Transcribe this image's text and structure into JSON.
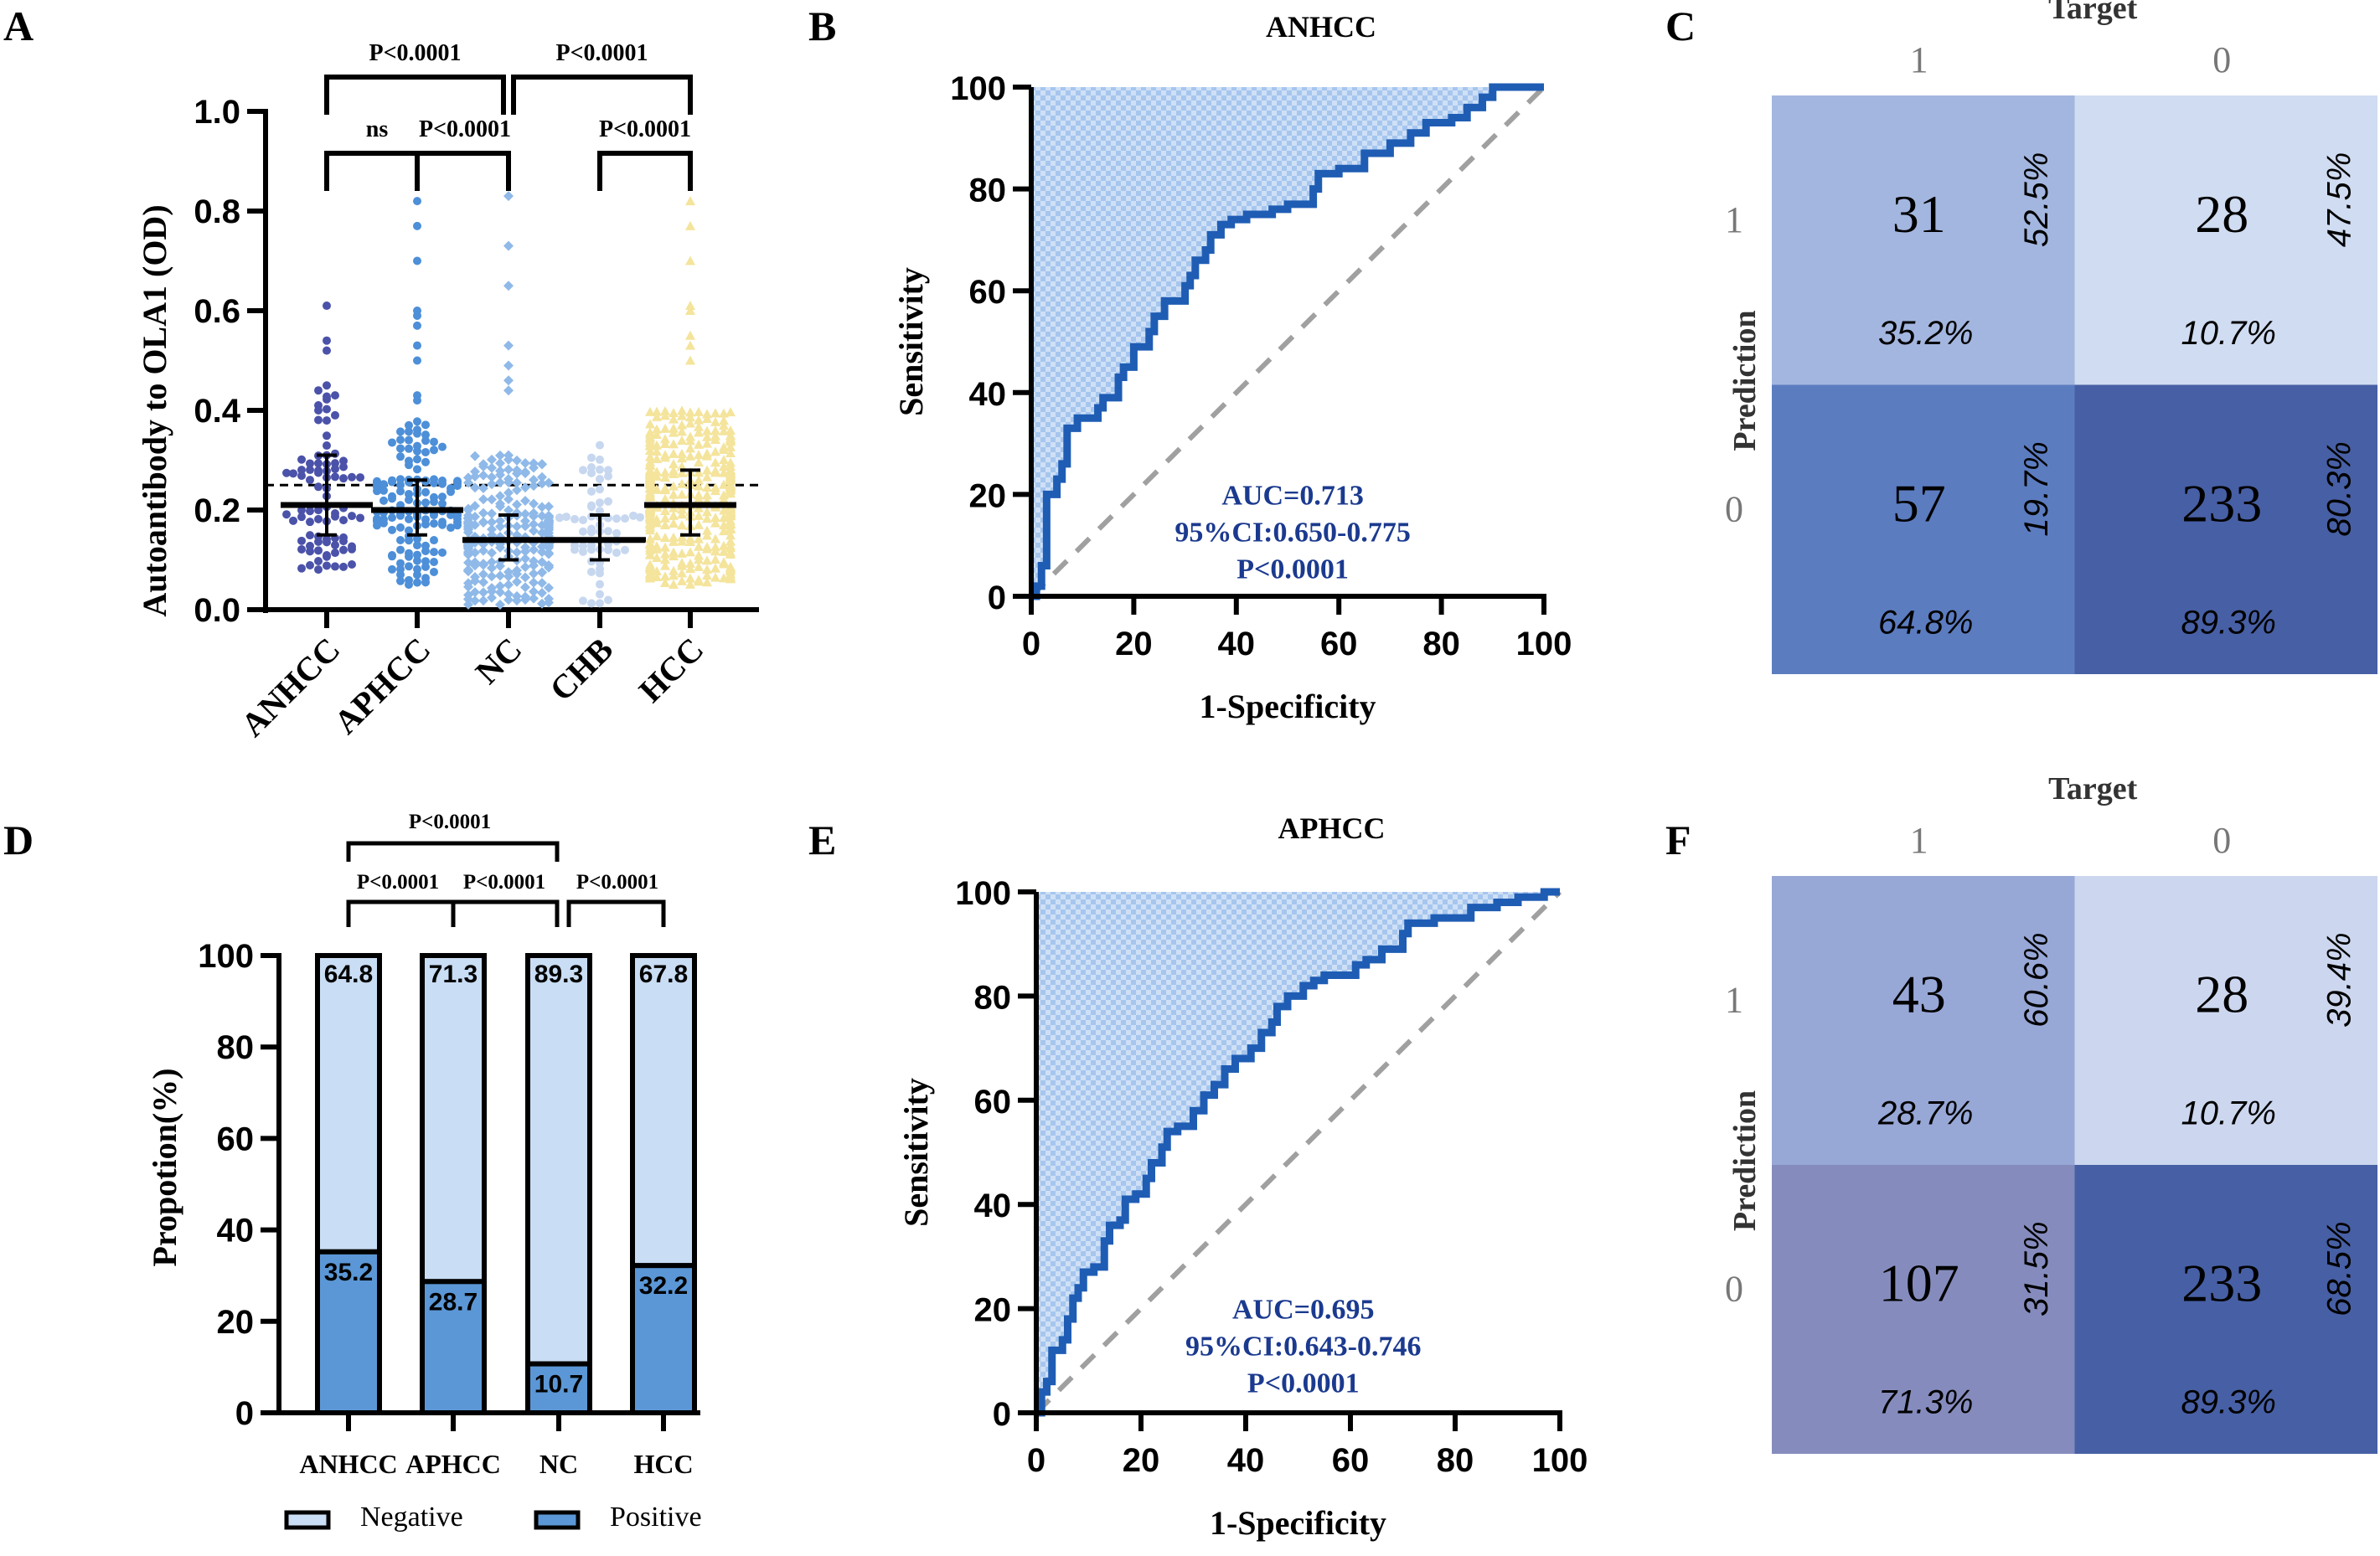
{
  "figure": {
    "panels": [
      "A",
      "B",
      "C",
      "D",
      "E",
      "F"
    ]
  },
  "colors": {
    "anhcc": "#4b52a9",
    "aphcc": "#4d8fd8",
    "nc": "#8fb9e8",
    "chb": "#c6d7ef",
    "hcc": "#f4e49c",
    "roc_line": "#1f5db4",
    "roc_fill_a": "#a6c6ee",
    "roc_fill_b": "#cfe0f6",
    "diag": "#a0a0a0",
    "auc_text": "#1b3a8f",
    "bar_negative": "#c9ddf4",
    "bar_positive": "#5b97d6",
    "cm_c": [
      "#a3b6df",
      "#d0dcf1",
      "#5c7cc0",
      "#475fa4"
    ],
    "cm_f": [
      "#97a7d6",
      "#ccd7ef",
      "#858cbd",
      "#475fa4"
    ]
  },
  "chart_data": [
    {
      "panel": "A",
      "type": "scatter",
      "title": "",
      "xlabel": "",
      "ylabel": "Autoantibody to OLA1 (OD)",
      "ylim": [
        0.0,
        1.0
      ],
      "yticks": [
        "0.0",
        "0.2",
        "0.4",
        "0.6",
        "0.8",
        "1.0"
      ],
      "categories": [
        "ANHCC",
        "APHCC",
        "NC",
        "CHB",
        "HCC"
      ],
      "cutoff": 0.25,
      "groups": [
        {
          "name": "ANHCC",
          "marker": "circle",
          "n": 88,
          "median": 0.21,
          "q1": 0.15,
          "q3": 0.31,
          "min": 0.08,
          "max": 0.61,
          "outliers": [
            0.61,
            0.54,
            0.52,
            0.45,
            0.44,
            0.43,
            0.41,
            0.4
          ]
        },
        {
          "name": "APHCC",
          "marker": "circle",
          "n": 150,
          "median": 0.2,
          "q1": 0.15,
          "q3": 0.26,
          "min": 0.05,
          "max": 0.82,
          "outliers": [
            0.82,
            0.77,
            0.7,
            0.6,
            0.59,
            0.57,
            0.53,
            0.5,
            0.43,
            0.42
          ]
        },
        {
          "name": "NC",
          "marker": "diamond",
          "n": 261,
          "median": 0.14,
          "q1": 0.1,
          "q3": 0.19,
          "min": 0.01,
          "max": 0.83,
          "outliers": [
            0.83,
            0.73,
            0.65,
            0.53,
            0.49,
            0.46,
            0.44
          ]
        },
        {
          "name": "CHB",
          "marker": "circle",
          "n": 60,
          "median": 0.14,
          "q1": 0.1,
          "q3": 0.19,
          "min": 0.01,
          "max": 0.33,
          "outliers": [
            0.33,
            0.28,
            0.28
          ]
        },
        {
          "name": "HCC",
          "marker": "triangle",
          "n": 400,
          "median": 0.21,
          "q1": 0.15,
          "q3": 0.28,
          "min": 0.05,
          "max": 0.82,
          "outliers": [
            0.82,
            0.77,
            0.7,
            0.61,
            0.6,
            0.55,
            0.53,
            0.5
          ]
        }
      ],
      "comparisons": [
        {
          "from": "ANHCC",
          "to": "APHCC",
          "label": "ns",
          "level": 1
        },
        {
          "from": "APHCC",
          "to": "NC",
          "label": "P<0.0001",
          "level": 1
        },
        {
          "from": "CHB",
          "to": "HCC",
          "label": "P<0.0001",
          "level": 1
        },
        {
          "from": "ANHCC",
          "to": "NC",
          "label": "P<0.0001",
          "level": 2
        },
        {
          "from": "NC",
          "to": "HCC",
          "label": "P<0.0001",
          "level": 2
        }
      ]
    },
    {
      "panel": "B",
      "type": "line",
      "title": "ANHCC",
      "xlabel": "1-Specificity",
      "ylabel": "Sensitivity",
      "xlim": [
        0,
        100
      ],
      "ylim": [
        0,
        100
      ],
      "xticks": [
        "0",
        "20",
        "40",
        "60",
        "80",
        "100"
      ],
      "yticks": [
        "0",
        "20",
        "40",
        "60",
        "80",
        "100"
      ],
      "annotation": [
        "AUC=0.713",
        "95%CI:0.650-0.775",
        "P<0.0001"
      ],
      "auc": 0.713,
      "ci": [
        0.65,
        0.775
      ],
      "roc": [
        [
          0,
          0
        ],
        [
          1,
          0
        ],
        [
          1,
          2
        ],
        [
          2,
          2
        ],
        [
          2,
          6
        ],
        [
          3,
          6
        ],
        [
          3,
          20
        ],
        [
          5,
          20
        ],
        [
          5,
          23
        ],
        [
          6,
          23
        ],
        [
          6,
          26
        ],
        [
          7,
          26
        ],
        [
          7,
          33
        ],
        [
          9,
          33
        ],
        [
          9,
          35
        ],
        [
          13,
          35
        ],
        [
          13,
          37
        ],
        [
          14,
          37
        ],
        [
          14,
          39
        ],
        [
          17,
          39
        ],
        [
          17,
          43
        ],
        [
          18,
          43
        ],
        [
          18,
          45
        ],
        [
          20,
          45
        ],
        [
          20,
          49
        ],
        [
          23,
          49
        ],
        [
          23,
          52
        ],
        [
          24,
          52
        ],
        [
          24,
          55
        ],
        [
          26,
          55
        ],
        [
          26,
          58
        ],
        [
          30,
          58
        ],
        [
          30,
          61
        ],
        [
          31,
          61
        ],
        [
          31,
          63
        ],
        [
          32,
          63
        ],
        [
          32,
          66
        ],
        [
          34,
          66
        ],
        [
          34,
          68
        ],
        [
          35,
          68
        ],
        [
          35,
          71
        ],
        [
          37,
          71
        ],
        [
          37,
          73
        ],
        [
          39,
          73
        ],
        [
          39,
          74
        ],
        [
          42,
          74
        ],
        [
          42,
          75
        ],
        [
          47,
          75
        ],
        [
          47,
          76
        ],
        [
          50,
          76
        ],
        [
          50,
          77
        ],
        [
          55,
          77
        ],
        [
          55,
          80
        ],
        [
          56,
          80
        ],
        [
          56,
          83
        ],
        [
          60,
          83
        ],
        [
          60,
          84
        ],
        [
          65,
          84
        ],
        [
          65,
          87
        ],
        [
          70,
          87
        ],
        [
          70,
          89
        ],
        [
          74,
          89
        ],
        [
          74,
          91
        ],
        [
          77,
          91
        ],
        [
          77,
          93
        ],
        [
          82,
          93
        ],
        [
          82,
          94
        ],
        [
          85,
          94
        ],
        [
          85,
          96
        ],
        [
          88,
          96
        ],
        [
          88,
          98
        ],
        [
          90,
          98
        ],
        [
          90,
          100
        ],
        [
          100,
          100
        ]
      ]
    },
    {
      "panel": "C",
      "type": "heatmap",
      "title": "Target",
      "xlabel": "Target",
      "ylabel": "Prediction",
      "col_labels": [
        "1",
        "0"
      ],
      "row_labels": [
        "1",
        "0"
      ],
      "cells": [
        {
          "row": "1",
          "col": "1",
          "count": "31",
          "row_pct": "52.5%",
          "col_pct": "35.2%"
        },
        {
          "row": "1",
          "col": "0",
          "count": "28",
          "row_pct": "47.5%",
          "col_pct": "10.7%"
        },
        {
          "row": "0",
          "col": "1",
          "count": "57",
          "row_pct": "19.7%",
          "col_pct": "64.8%"
        },
        {
          "row": "0",
          "col": "0",
          "count": "233",
          "row_pct": "80.3%",
          "col_pct": "89.3%"
        }
      ]
    },
    {
      "panel": "D",
      "type": "bar",
      "stacked": true,
      "title": "",
      "xlabel": "",
      "ylabel": "Propotion(%)",
      "ylim": [
        0,
        100
      ],
      "yticks": [
        "0",
        "20",
        "40",
        "60",
        "80",
        "100"
      ],
      "categories": [
        "ANHCC",
        "APHCC",
        "NC",
        "HCC"
      ],
      "series": [
        {
          "name": "Positive",
          "values": [
            35.2,
            28.7,
            10.7,
            32.2
          ]
        },
        {
          "name": "Negative",
          "values": [
            64.8,
            71.3,
            89.3,
            67.8
          ]
        }
      ],
      "legend": [
        "Negative",
        "Positive"
      ],
      "legend_position": "bottom",
      "comparisons": [
        {
          "from": "ANHCC",
          "mid": "APHCC",
          "to": "NC",
          "labels": [
            "P<0.0001",
            "P<0.0001"
          ],
          "level": 1
        },
        {
          "from": "NC",
          "to": "HCC",
          "label": "P<0.0001",
          "level": 1
        },
        {
          "from": "ANHCC",
          "to": "NC",
          "label": "P<0.0001",
          "level": 2
        }
      ]
    },
    {
      "panel": "E",
      "type": "line",
      "title": "APHCC",
      "xlabel": "1-Specificity",
      "ylabel": "Sensitivity",
      "xlim": [
        0,
        100
      ],
      "ylim": [
        0,
        100
      ],
      "xticks": [
        "0",
        "20",
        "40",
        "60",
        "80",
        "100"
      ],
      "yticks": [
        "0",
        "20",
        "40",
        "60",
        "80",
        "100"
      ],
      "annotation": [
        "AUC=0.695",
        "95%CI:0.643-0.746",
        "P<0.0001"
      ],
      "auc": 0.695,
      "ci": [
        0.643,
        0.746
      ],
      "roc": [
        [
          0,
          0
        ],
        [
          1,
          0
        ],
        [
          1,
          4
        ],
        [
          2,
          4
        ],
        [
          2,
          6
        ],
        [
          3,
          6
        ],
        [
          3,
          12
        ],
        [
          5,
          12
        ],
        [
          5,
          14
        ],
        [
          6,
          14
        ],
        [
          6,
          18
        ],
        [
          7,
          18
        ],
        [
          7,
          22
        ],
        [
          8,
          22
        ],
        [
          8,
          24
        ],
        [
          9,
          24
        ],
        [
          9,
          27
        ],
        [
          11,
          27
        ],
        [
          11,
          28
        ],
        [
          13,
          28
        ],
        [
          13,
          33
        ],
        [
          14,
          33
        ],
        [
          14,
          36
        ],
        [
          16,
          36
        ],
        [
          16,
          37
        ],
        [
          17,
          37
        ],
        [
          17,
          41
        ],
        [
          19,
          41
        ],
        [
          19,
          42
        ],
        [
          21,
          42
        ],
        [
          21,
          45
        ],
        [
          22,
          45
        ],
        [
          22,
          48
        ],
        [
          24,
          48
        ],
        [
          24,
          51
        ],
        [
          25,
          51
        ],
        [
          25,
          54
        ],
        [
          27,
          54
        ],
        [
          27,
          55
        ],
        [
          30,
          55
        ],
        [
          30,
          58
        ],
        [
          32,
          58
        ],
        [
          32,
          61
        ],
        [
          34,
          61
        ],
        [
          34,
          63
        ],
        [
          36,
          63
        ],
        [
          36,
          66
        ],
        [
          38,
          66
        ],
        [
          38,
          68
        ],
        [
          41,
          68
        ],
        [
          41,
          70
        ],
        [
          43,
          70
        ],
        [
          43,
          73
        ],
        [
          45,
          73
        ],
        [
          45,
          75
        ],
        [
          46,
          75
        ],
        [
          46,
          78
        ],
        [
          48,
          78
        ],
        [
          48,
          80
        ],
        [
          51,
          80
        ],
        [
          51,
          82
        ],
        [
          53,
          82
        ],
        [
          53,
          83
        ],
        [
          55,
          83
        ],
        [
          55,
          84
        ],
        [
          61,
          84
        ],
        [
          61,
          86
        ],
        [
          63,
          86
        ],
        [
          63,
          87
        ],
        [
          66,
          87
        ],
        [
          66,
          89
        ],
        [
          70,
          89
        ],
        [
          70,
          92
        ],
        [
          71,
          92
        ],
        [
          71,
          94
        ],
        [
          76,
          94
        ],
        [
          76,
          95
        ],
        [
          83,
          95
        ],
        [
          83,
          97
        ],
        [
          88,
          97
        ],
        [
          88,
          98
        ],
        [
          92,
          98
        ],
        [
          92,
          99
        ],
        [
          97,
          99
        ],
        [
          97,
          100
        ],
        [
          100,
          100
        ]
      ]
    },
    {
      "panel": "F",
      "type": "heatmap",
      "title": "Target",
      "xlabel": "Target",
      "ylabel": "Prediction",
      "col_labels": [
        "1",
        "0"
      ],
      "row_labels": [
        "1",
        "0"
      ],
      "cells": [
        {
          "row": "1",
          "col": "1",
          "count": "43",
          "row_pct": "60.6%",
          "col_pct": "28.7%"
        },
        {
          "row": "1",
          "col": "0",
          "count": "28",
          "row_pct": "39.4%",
          "col_pct": "10.7%"
        },
        {
          "row": "0",
          "col": "1",
          "count": "107",
          "row_pct": "31.5%",
          "col_pct": "71.3%"
        },
        {
          "row": "0",
          "col": "0",
          "count": "233",
          "row_pct": "68.5%",
          "col_pct": "89.3%"
        }
      ]
    }
  ]
}
